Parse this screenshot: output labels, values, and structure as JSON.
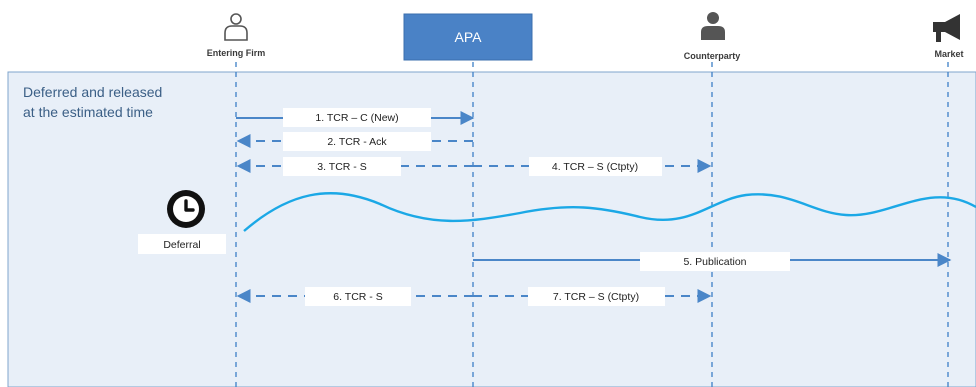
{
  "actors": {
    "entering_firm": "Entering Firm",
    "apa": "APA",
    "counterparty": "Counterparty",
    "market": "Market"
  },
  "note": {
    "line1": "Deferred and released",
    "line2": "at the estimated time"
  },
  "deferral_label": "Deferral",
  "messages": [
    {
      "label": "1. TCR – C (New)",
      "style": "solid"
    },
    {
      "label": "2. TCR - Ack",
      "style": "dashed"
    },
    {
      "label": "3. TCR - S",
      "style": "dashed"
    },
    {
      "label": "4. TCR – S (Ctpty)",
      "style": "dashed"
    },
    {
      "label": "5. Publication",
      "style": "solid"
    },
    {
      "label": "6. TCR - S",
      "style": "dashed"
    },
    {
      "label": "7. TCR – S (Ctpty)",
      "style": "dashed"
    }
  ],
  "colors": {
    "panel_bg": "#e8eff8",
    "panel_border": "#7fa4cc",
    "lifeline": "#3d7fc6",
    "arrow": "#4a86c8",
    "wave": "#1ba8e6",
    "apa_box": "#4a82c6",
    "note_text": "#3b5f86"
  },
  "icons": {
    "entering_firm": "person-outline-icon",
    "counterparty": "person-solid-icon",
    "market": "megaphone-icon",
    "deferral": "clock-icon"
  }
}
